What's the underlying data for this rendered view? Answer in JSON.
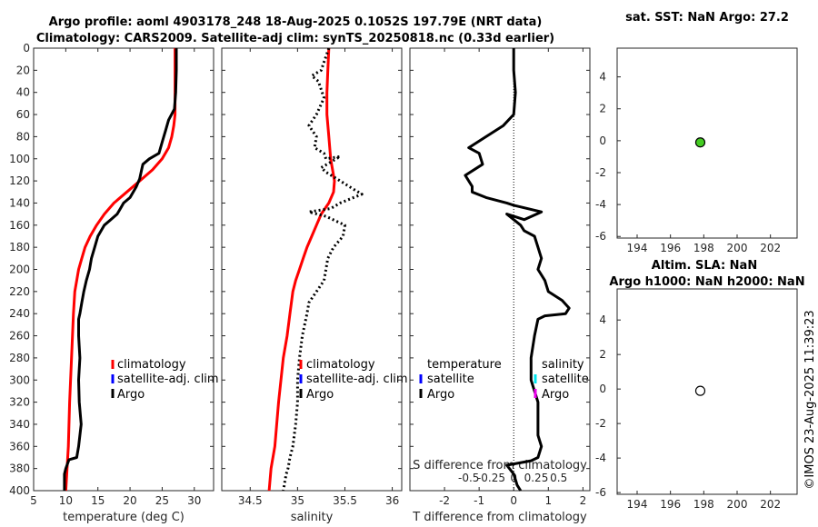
{
  "chart_data": [
    {
      "id": "temp",
      "type": "line",
      "title": "Argo profile: aoml 4903178_248 18-Aug-2025 0.1052S 197.79E (NRT data)",
      "subtitle": "Climatology: CARS2009. Satellite-adj clim: synTS_20250818.nc (0.33d earlier)",
      "xlabel": "temperature (deg C)",
      "ylim": [
        0,
        400
      ],
      "xlim": [
        5,
        33
      ],
      "xticks": [
        "5",
        "10",
        "15",
        "20",
        "25",
        "30"
      ],
      "yticks": [
        "0",
        "20",
        "40",
        "60",
        "80",
        "100",
        "120",
        "140",
        "160",
        "180",
        "200",
        "220",
        "240",
        "260",
        "280",
        "300",
        "320",
        "340",
        "360",
        "380",
        "400"
      ],
      "legend": [
        "climatology",
        "satellite-adj. clim",
        "Argo"
      ],
      "series": [
        {
          "name": "climatology",
          "color": "#ff0000",
          "style": "solid",
          "x": [
            27.0,
            27.0,
            27.0,
            27.0,
            26.8,
            26.5,
            26.0,
            25.0,
            23.5,
            21.5,
            19.5,
            17.5,
            16.0,
            14.8,
            13.8,
            13.0,
            12.5,
            12.0,
            11.7,
            11.4,
            11.2,
            10.9,
            10.6,
            10.4,
            10.2,
            10.0
          ],
          "y": [
            0,
            20,
            40,
            60,
            70,
            80,
            90,
            100,
            110,
            120,
            130,
            140,
            150,
            160,
            170,
            180,
            190,
            200,
            210,
            220,
            240,
            280,
            320,
            360,
            380,
            400
          ]
        },
        {
          "name": "Argo",
          "color": "#000000",
          "style": "solid",
          "x": [
            27.2,
            27.2,
            27.1,
            26.9,
            26.0,
            25.5,
            25.0,
            24.5,
            23.0,
            22.0,
            21.8,
            21.5,
            21.0,
            20.0,
            19.0,
            18.5,
            18.0,
            17.0,
            16.0,
            15.0,
            14.5,
            14.0,
            13.7,
            13.2,
            12.8,
            12.5,
            12.2,
            12.0,
            12.0,
            12.2,
            12.0,
            12.1,
            12.4,
            12.0,
            11.7,
            10.5,
            10.0,
            9.8,
            9.8,
            9.8
          ],
          "y": [
            0,
            20,
            40,
            55,
            65,
            75,
            85,
            95,
            100,
            105,
            110,
            118,
            125,
            135,
            140,
            145,
            150,
            155,
            160,
            170,
            180,
            190,
            200,
            210,
            220,
            230,
            240,
            245,
            260,
            280,
            300,
            320,
            340,
            360,
            370,
            372,
            380,
            385,
            395,
            400
          ]
        }
      ]
    },
    {
      "id": "salt",
      "type": "line",
      "xlabel": "salinity",
      "ylim": [
        0,
        400
      ],
      "xlim": [
        34.2,
        36.1
      ],
      "xticks": [
        "34.5",
        "35",
        "35.5",
        "36"
      ],
      "legend": [
        "climatology",
        "satellite-adj. clim",
        "Argo"
      ],
      "series": [
        {
          "name": "climatology",
          "color": "#ff0000",
          "style": "solid",
          "x": [
            35.33,
            35.32,
            35.31,
            35.31,
            35.33,
            35.35,
            35.37,
            35.39,
            35.38,
            35.33,
            35.25,
            35.2,
            35.15,
            35.1,
            35.06,
            35.02,
            34.98,
            34.95,
            34.92,
            34.89,
            34.85,
            34.8,
            34.76,
            34.72,
            34.7
          ],
          "y": [
            0,
            20,
            40,
            60,
            80,
            100,
            110,
            120,
            130,
            140,
            150,
            160,
            170,
            180,
            190,
            200,
            210,
            220,
            240,
            260,
            280,
            320,
            360,
            380,
            400
          ]
        },
        {
          "name": "Argo",
          "color": "#000000",
          "style": "dotted",
          "x": [
            35.33,
            35.25,
            35.15,
            35.22,
            35.28,
            35.2,
            35.12,
            35.2,
            35.18,
            35.28,
            35.3,
            35.45,
            35.25,
            35.3,
            35.6,
            35.68,
            35.45,
            35.35,
            35.12,
            35.3,
            35.5,
            35.48,
            35.38,
            35.32,
            35.3,
            35.28,
            35.2,
            35.12,
            35.1,
            35.05,
            35.02,
            35.0,
            35.0,
            34.98,
            34.95,
            34.92,
            34.9,
            34.88,
            34.87,
            34.86,
            34.85
          ],
          "y": [
            0,
            20,
            25,
            30,
            45,
            60,
            70,
            80,
            90,
            95,
            100,
            98,
            108,
            112,
            128,
            132,
            140,
            145,
            148,
            152,
            160,
            170,
            180,
            190,
            200,
            210,
            220,
            230,
            240,
            260,
            280,
            300,
            320,
            340,
            360,
            370,
            380,
            385,
            390,
            395,
            400
          ]
        }
      ]
    },
    {
      "id": "diff",
      "type": "line",
      "xlabel": "T difference from climatology",
      "xlabel2": "S difference from climatology",
      "ylim": [
        0,
        400
      ],
      "xlim": [
        -3,
        2.2
      ],
      "xticks": [
        "-2",
        "-1",
        "0",
        "1",
        "2"
      ],
      "xticks2": [
        "-0.5",
        "-0.25",
        "0",
        "0.25",
        "0.5"
      ],
      "legend": {
        "temperature": "temperature",
        "salinity": "salinity",
        "satellite": "satellite",
        "argo": "Argo"
      },
      "series": [
        {
          "name": "T difference",
          "color": "#000000",
          "style": "solid",
          "x": [
            0.0,
            0.0,
            0.05,
            0.0,
            -0.3,
            -0.8,
            -1.3,
            -1.0,
            -0.9,
            -1.4,
            -1.2,
            -1.2,
            -0.8,
            -0.2,
            0.0,
            0.8,
            0.3,
            -0.2,
            0.2,
            0.3,
            0.6,
            0.7,
            0.8,
            0.7,
            0.9,
            1.0,
            1.4,
            1.6,
            1.5,
            0.9,
            0.7,
            0.6,
            0.5,
            0.5,
            0.6,
            0.7,
            0.7,
            0.7,
            0.7,
            0.8,
            0.7,
            0.5,
            -0.2,
            0.0,
            0.1,
            0.2
          ],
          "y": [
            0,
            20,
            40,
            60,
            70,
            80,
            90,
            95,
            105,
            115,
            125,
            130,
            135,
            140,
            142,
            148,
            155,
            150,
            160,
            165,
            170,
            180,
            190,
            200,
            210,
            220,
            228,
            235,
            240,
            242,
            245,
            260,
            280,
            300,
            310,
            320,
            330,
            340,
            350,
            360,
            370,
            373,
            377,
            385,
            395,
            400
          ]
        },
        {
          "name": "zero line",
          "color": "#000000",
          "style": "dotted",
          "x": [
            0,
            0
          ],
          "y": [
            0,
            400
          ]
        }
      ]
    },
    {
      "id": "sst",
      "type": "scatter",
      "title": "sat. SST: NaN Argo: 27.2",
      "xlim": [
        192.8,
        203.6
      ],
      "ylim": [
        -6.1,
        5.8
      ],
      "xticks": [
        "194",
        "196",
        "198",
        "200",
        "202"
      ],
      "yticks": [
        "-6",
        "-4",
        "-2",
        "0",
        "2",
        "4"
      ],
      "points": [
        {
          "x": 197.79,
          "y": -0.1052,
          "color": "#44cc22"
        }
      ]
    },
    {
      "id": "sla",
      "type": "scatter",
      "title": "Altim. SLA: NaN",
      "subtitle": "Argo h1000: NaN h2000: NaN",
      "xlim": [
        192.8,
        203.6
      ],
      "ylim": [
        -6.1,
        5.8
      ],
      "xticks": [
        "194",
        "196",
        "198",
        "200",
        "202"
      ],
      "yticks": [
        "-6",
        "-4",
        "-2",
        "0",
        "2",
        "4"
      ],
      "points": [
        {
          "x": 197.79,
          "y": -0.1052,
          "color": "#ffffff"
        }
      ]
    }
  ],
  "footer": {
    "stamp": "©IMOS 23-Aug-2025 11:39:23"
  }
}
